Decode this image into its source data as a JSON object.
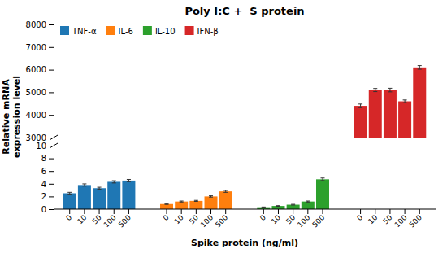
{
  "chart_data": {
    "type": "bar",
    "title": "Poly I:C +  S protein",
    "x_label": "Spike protein (ng/ml)",
    "y_label": "Relative mRNA\nexpression level",
    "categories": [
      "0",
      "10",
      "50",
      "100",
      "500"
    ],
    "series": [
      {
        "name": "TNF-α",
        "values": [
          2.5,
          3.8,
          3.3,
          4.3,
          4.5
        ],
        "errors": [
          0.15,
          0.18,
          0.15,
          0.18,
          0.18
        ]
      },
      {
        "name": "IL-6",
        "values": [
          0.8,
          1.2,
          1.3,
          2.0,
          2.8
        ],
        "errors": [
          0.06,
          0.08,
          0.08,
          0.1,
          0.15
        ]
      },
      {
        "name": "IL-10",
        "values": [
          0.3,
          0.5,
          0.7,
          1.2,
          4.7
        ],
        "errors": [
          0.04,
          0.05,
          0.06,
          0.08,
          0.2
        ]
      },
      {
        "name": "IFN-β",
        "axis": "y2",
        "values": [
          4400,
          5100,
          5100,
          4600,
          6100
        ],
        "errors": [
          80,
          70,
          80,
          60,
          80
        ]
      }
    ],
    "ylim": [
      0,
      10
    ],
    "yticks": [
      0,
      2,
      4,
      6,
      8,
      10
    ],
    "y2lim": [
      3000,
      8000
    ],
    "y2ticks": [
      3000,
      4000,
      5000,
      6000,
      7000,
      8000
    ],
    "legend": "top-left",
    "grid": false
  }
}
